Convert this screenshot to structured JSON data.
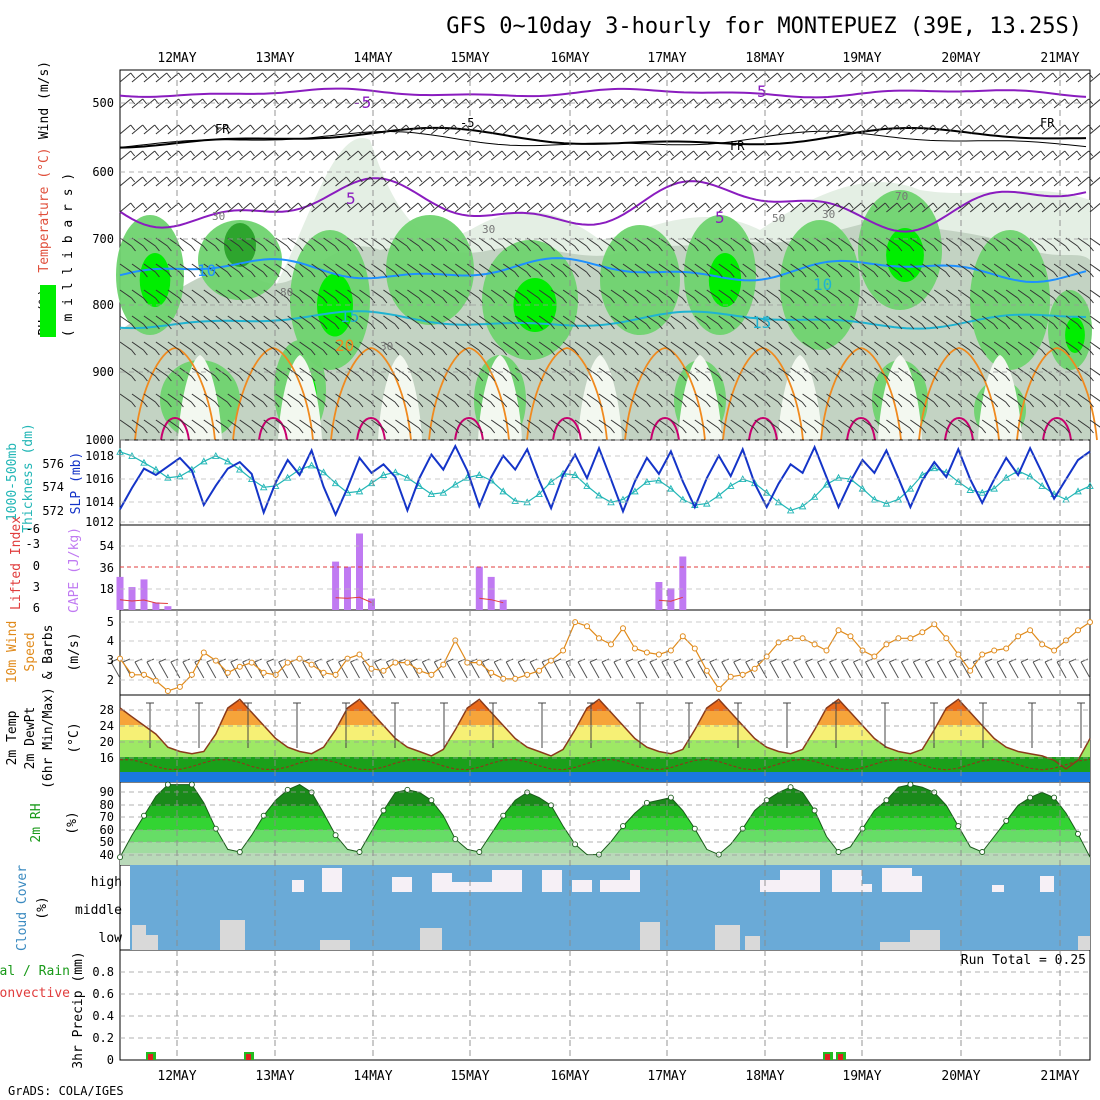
{
  "title": "GFS 0~10day 3-hourly for MONTEPUEZ (39E, 13.25S)",
  "footer": "GrADS: COLA/IGES",
  "dates": [
    "12MAY",
    "13MAY",
    "14MAY",
    "15MAY",
    "16MAY",
    "17MAY",
    "18MAY",
    "19MAY",
    "20MAY",
    "21MAY"
  ],
  "colors": {
    "rh_light": "#e4efe4",
    "rh_mid": "#c3d3c3",
    "rh_green": "#6fd36f",
    "rh_bright": "#00ee00",
    "rh_dark": "#2ea52e",
    "temp_purple": "#8a1cbf",
    "temp_black": "#000000",
    "temp_blue1": "#1e90ff",
    "temp_cyan": "#1fb3d1",
    "temp_orange": "#f08a1f",
    "temp_magenta": "#c8006e",
    "slp": "#1434c8",
    "thickness": "#22b6b6",
    "cape": "#c07af2",
    "lifted": "#e03c3c",
    "wind10": "#e08a1a",
    "barb": "#555555",
    "cloud_bg": "#6aaad7",
    "cloud_high": "#f6f0f6",
    "cloud_low": "#d9d9d9",
    "precip_red": "#e02020",
    "precip_green": "#22bb22"
  },
  "panels": {
    "upper": {
      "axis_label": "Wind (m/s)",
      "temp_label": "Temperature (°C)",
      "rh_label": "RH (%)",
      "unit_label": "( m i l l i b a r s )",
      "yticks": [
        "500",
        "600",
        "700",
        "800",
        "900",
        "1000"
      ],
      "contour_labels": [
        "-5",
        "FR",
        "-5",
        "FR",
        "FR",
        "5",
        "5",
        "5",
        "10",
        "15",
        "15",
        "20",
        "10",
        "30",
        "30",
        "30",
        "70",
        "80",
        "30",
        "50"
      ]
    },
    "slp": {
      "label1": "SLP (mb)",
      "label2": "Thickness (dm)",
      "label3": "1000-500mb",
      "left_ticks": [
        "576",
        "574",
        "572"
      ],
      "right_ticks": [
        "1018",
        "1016",
        "1014",
        "1012"
      ]
    },
    "cape": {
      "label1": "Lifted Index",
      "label2": "CAPE (J/kg)",
      "left_ticks": [
        "-6",
        "-3",
        "0",
        "3",
        "6"
      ],
      "right_ticks": [
        "54",
        "36",
        "18"
      ]
    },
    "wind": {
      "label1": "10m Wind",
      "label2": "Speed",
      "label3": "& Barbs",
      "unit": "(m/s)",
      "yticks": [
        "5",
        "4",
        "3",
        "2"
      ]
    },
    "temp2m": {
      "label1": "2m Temp",
      "label2": "2m DewPt",
      "label3": "(6hr Min/Max)",
      "unit": "(°C)",
      "yticks": [
        "28",
        "24",
        "20",
        "16"
      ]
    },
    "rh2m": {
      "label1": "2m RH",
      "unit": "(%)",
      "yticks": [
        "90",
        "80",
        "70",
        "60",
        "50",
        "40"
      ]
    },
    "cloud": {
      "label1": "Cloud Cover",
      "unit": "(%)",
      "levels": [
        "high",
        "middle",
        "low"
      ]
    },
    "precip": {
      "label1": "3hr Precip (mm)",
      "label2": "tal / Rain",
      "label3": "Convective",
      "run_total": "Run Total = 0.25",
      "yticks": [
        "0.8",
        "0.6",
        "0.4",
        "0.2",
        "0"
      ]
    }
  },
  "chart_data": [
    {
      "type": "line",
      "name": "slp",
      "ylabel": "SLP (mb)",
      "ylim": [
        1012,
        1019
      ],
      "values": [
        1013,
        1015,
        1016.8,
        1016.2,
        1017,
        1017.8,
        1016.6,
        1013.4,
        1015.2,
        1016.8,
        1017.4,
        1016.3,
        1012.7,
        1015.5,
        1017.6,
        1016.2,
        1018.5,
        1015.1,
        1012.5,
        1015.0,
        1017.8,
        1016.4,
        1017.2,
        1016.0,
        1012.9,
        1015.9,
        1018.1,
        1016.7,
        1018.9,
        1016.6,
        1013.3,
        1016.0,
        1018.0,
        1016.7,
        1018.6,
        1015.7,
        1013.1,
        1016.2,
        1018.1,
        1015.9,
        1018.7,
        1015.8,
        1012.8,
        1015.6,
        1017.8,
        1016.3,
        1018.4,
        1015.6,
        1013.2,
        1015.9,
        1018.0,
        1016.1,
        1018.6,
        1015.4,
        1013.2,
        1015.4,
        1017.2,
        1016.4,
        1018.8,
        1016.0,
        1013.2,
        1015.6,
        1017.6,
        1016.4,
        1018.5,
        1015.9,
        1013.2,
        1015.7,
        1017.4,
        1016.0,
        1018.6,
        1015.8,
        1013.6,
        1015.8,
        1017.8,
        1016.2,
        1018.7,
        1016.4,
        1014.0,
        1015.8,
        1017.6,
        1018.4
      ]
    },
    {
      "type": "line",
      "name": "thickness",
      "ylabel": "Thickness (dm)",
      "ylim": [
        571.5,
        577
      ],
      "values": [
        576.5,
        576.2,
        575.7,
        575.2,
        574.6,
        574.7,
        575.2,
        575.8,
        576.2,
        575.8,
        575.2,
        574.5,
        573.9,
        574.0,
        574.6,
        575.2,
        575.5,
        575.0,
        574.2,
        573.5,
        573.6,
        574.2,
        574.8,
        575.0,
        574.6,
        574.0,
        573.4,
        573.5,
        574.1,
        574.6,
        574.8,
        574.4,
        573.6,
        572.9,
        572.8,
        573.4,
        574.3,
        574.9,
        574.8,
        574.0,
        573.3,
        572.8,
        573.0,
        573.6,
        574.3,
        574.4,
        573.8,
        573.0,
        572.6,
        572.7,
        573.3,
        574.0,
        574.5,
        574.2,
        573.5,
        572.8,
        572.2,
        572.5,
        573.2,
        574.1,
        574.6,
        574.5,
        573.8,
        573.0,
        572.7,
        573.0,
        573.8,
        574.8,
        575.3,
        575.0,
        574.3,
        573.7,
        573.5,
        573.8,
        574.6,
        575.1,
        574.7,
        574.0,
        573.4,
        573.0,
        573.6,
        574.0
      ]
    },
    {
      "type": "bar",
      "name": "cape",
      "ylabel": "CAPE (J/kg)",
      "ylim": [
        0,
        62
      ],
      "values": [
        26,
        18,
        24,
        6,
        3,
        0,
        0,
        0,
        0,
        0,
        0,
        0,
        0,
        0,
        0,
        0,
        0,
        0,
        38,
        34,
        60,
        9,
        0,
        0,
        0,
        0,
        0,
        0,
        0,
        0,
        34,
        26,
        8,
        0,
        0,
        0,
        0,
        0,
        0,
        0,
        0,
        0,
        0,
        0,
        0,
        22,
        17,
        42,
        0,
        0,
        0,
        0,
        0,
        0,
        0,
        0,
        0,
        0,
        0,
        0,
        0,
        0,
        0,
        0,
        0,
        0,
        0,
        0,
        0,
        0,
        0,
        0,
        0,
        0,
        0,
        0,
        0,
        0,
        0,
        0,
        0,
        0
      ]
    },
    {
      "type": "line",
      "name": "wind10m",
      "ylabel": "(m/s)",
      "ylim": [
        1.4,
        5.6
      ],
      "values": [
        3.2,
        2.4,
        2.4,
        2.1,
        1.6,
        1.8,
        2.4,
        3.5,
        3.1,
        2.5,
        2.8,
        3.0,
        2.5,
        2.4,
        3.0,
        3.2,
        2.9,
        2.5,
        2.4,
        3.2,
        3.4,
        2.7,
        2.6,
        3.0,
        3.0,
        2.6,
        2.4,
        2.9,
        4.1,
        3.0,
        3.0,
        2.5,
        2.2,
        2.2,
        2.4,
        2.6,
        3.1,
        3.6,
        5.0,
        4.8,
        4.2,
        3.9,
        4.7,
        3.7,
        3.5,
        3.4,
        3.6,
        4.3,
        3.7,
        2.6,
        1.7,
        2.3,
        2.4,
        2.7,
        3.3,
        4.0,
        4.2,
        4.2,
        3.9,
        3.6,
        4.6,
        4.3,
        3.6,
        3.3,
        3.9,
        4.2,
        4.2,
        4.5,
        4.9,
        4.2,
        3.4,
        2.6,
        3.4,
        3.6,
        3.7,
        4.3,
        4.6,
        3.9,
        3.6,
        4.1,
        4.6,
        5.0
      ]
    },
    {
      "type": "area",
      "name": "temp2m",
      "ylabel": "(°C)",
      "ylim": [
        11,
        31
      ],
      "values": [
        28,
        26,
        24,
        22,
        19,
        18,
        17.5,
        18,
        22,
        28,
        30,
        27,
        24,
        21,
        19,
        18,
        17.5,
        19,
        23,
        28,
        30,
        27,
        24,
        21,
        19,
        18,
        17,
        18.5,
        23,
        28,
        30,
        27,
        24,
        21,
        19,
        18,
        17,
        18.5,
        23,
        28,
        30,
        27,
        24,
        21,
        19,
        18,
        17.5,
        18.5,
        23,
        28,
        30,
        27,
        24,
        21,
        19,
        18,
        17.5,
        18.5,
        23,
        28,
        30,
        27,
        24,
        21,
        19,
        18,
        17.5,
        18.5,
        23,
        28,
        30,
        27,
        24,
        21,
        19,
        18,
        17.5,
        17,
        16,
        14,
        16,
        21
      ]
    },
    {
      "type": "area",
      "name": "rh2m",
      "ylabel": "(%)",
      "ylim": [
        32,
        96
      ],
      "values": [
        38,
        55,
        70,
        85,
        94,
        94,
        94,
        80,
        60,
        44,
        42,
        55,
        70,
        82,
        90,
        94,
        88,
        72,
        55,
        44,
        42,
        58,
        74,
        88,
        90,
        88,
        82,
        70,
        52,
        44,
        42,
        56,
        70,
        82,
        88,
        84,
        78,
        62,
        48,
        40,
        40,
        50,
        62,
        72,
        80,
        82,
        84,
        74,
        60,
        44,
        40,
        48,
        60,
        74,
        82,
        88,
        92,
        88,
        74,
        54,
        42,
        46,
        60,
        74,
        82,
        92,
        94,
        92,
        88,
        78,
        62,
        46,
        42,
        54,
        66,
        78,
        84,
        88,
        84,
        72,
        56,
        38
      ]
    }
  ]
}
